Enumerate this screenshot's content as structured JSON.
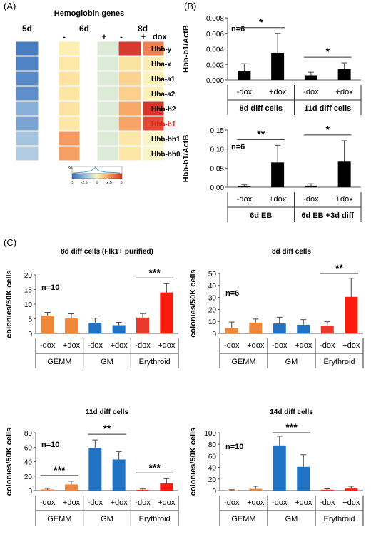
{
  "panel_labels": [
    "(A)",
    "(B)",
    "(C)"
  ],
  "heatmap": {
    "title": "Hemoglobin genes",
    "day_labels": [
      "5d",
      "6d",
      "8d"
    ],
    "dox_labels": [
      "-",
      "+",
      "-",
      "+"
    ],
    "dox_label": "dox",
    "genes": [
      "Hbb-y",
      "Hba-x",
      "Hba-a1",
      "Hba-a2",
      "Hbb-b2",
      "Hbb-b1",
      "Hbb-bh1",
      "Hbb-bh0"
    ],
    "highlight_color": "#d9251c",
    "colorbar": {
      "ticks": [
        "-5",
        "-2.5",
        "0",
        "2.5",
        "5"
      ],
      "count_label": "95"
    }
  },
  "chart_data": [
    {
      "id": "B-top",
      "type": "bar",
      "ylabel": "Hbb-b1/ActB",
      "ylim": [
        0,
        0.008
      ],
      "yticks": [
        "0.000",
        "0.002",
        "0.004",
        "0.006",
        "0.008"
      ],
      "n_label": "n=6",
      "categories": [
        "-dox",
        "+dox",
        "-dox",
        "+dox"
      ],
      "groups": [
        "8d diff cells",
        "11d diff cells"
      ],
      "values": [
        0.0011,
        0.0035,
        0.0006,
        0.0014
      ],
      "errors": [
        0.001,
        0.0025,
        0.0004,
        0.0008
      ],
      "sig": [
        "*",
        "*"
      ]
    },
    {
      "id": "B-bottom",
      "type": "bar",
      "ylabel": "Hbb-b1/ActB",
      "ylim": [
        0,
        0.15
      ],
      "yticks": [
        "0.00",
        "0.05",
        "0.10",
        "0.15"
      ],
      "n_label": "n=6",
      "categories": [
        "-dox",
        "+dox",
        "-dox",
        "+dox"
      ],
      "groups": [
        "6d EB",
        "6d EB +3d diff"
      ],
      "values": [
        0.003,
        0.065,
        0.004,
        0.067
      ],
      "errors": [
        0.003,
        0.045,
        0.005,
        0.055
      ],
      "sig": [
        "**",
        "*"
      ]
    },
    {
      "id": "C1",
      "type": "bar",
      "title": "8d diff cells (Flk1+ purified)",
      "ylabel": "colonies/50K cells",
      "ylim": [
        0,
        20
      ],
      "yticks": [
        "0",
        "5",
        "10",
        "15",
        "20"
      ],
      "n_label": "n=10",
      "categories": [
        "-dox",
        "+dox",
        "-dox",
        "+dox",
        "-dox",
        "+dox"
      ],
      "groups": [
        "GEMM",
        "GM",
        "Erythroid"
      ],
      "values": [
        6.1,
        5.1,
        3.6,
        2.8,
        5.4,
        14
      ],
      "errors": [
        1.1,
        1.6,
        1.6,
        1.0,
        1.4,
        3.0
      ],
      "sig": [
        "",
        "",
        "***"
      ]
    },
    {
      "id": "C2",
      "type": "bar",
      "title": "8d diff cells",
      "ylabel": "colonies/50K cells",
      "ylim": [
        0,
        50
      ],
      "yticks": [
        "0",
        "10",
        "20",
        "30",
        "40",
        "50"
      ],
      "n_label": "n=6",
      "categories": [
        "-dox",
        "+dox",
        "-dox",
        "+dox",
        "-dox",
        "+dox"
      ],
      "groups": [
        "GEMM",
        "GM",
        "Erythroid"
      ],
      "values": [
        4.5,
        9,
        8.3,
        7.2,
        6.5,
        30.5
      ],
      "errors": [
        5,
        3,
        5.2,
        4.3,
        3.2,
        15.5
      ],
      "sig": [
        "",
        "",
        "**"
      ]
    },
    {
      "id": "C3",
      "type": "bar",
      "title": "11d diff cells",
      "ylabel": "colonies/50K cells",
      "ylim": [
        0,
        80
      ],
      "yticks": [
        "0",
        "20",
        "40",
        "60",
        "80"
      ],
      "n_label": "n=10",
      "categories": [
        "-dox",
        "+dox",
        "-dox",
        "+dox",
        "-dox",
        "+dox"
      ],
      "groups": [
        "GEMM",
        "GM",
        "Erythroid"
      ],
      "values": [
        1.5,
        8.5,
        59,
        43,
        1,
        10
      ],
      "errors": [
        1.5,
        4.5,
        11,
        11,
        1.2,
        6.5
      ],
      "sig": [
        "***",
        "**",
        "***"
      ]
    },
    {
      "id": "C4",
      "type": "bar",
      "title": "14d diff cells",
      "ylabel": "colonies/50K cells",
      "ylim": [
        0,
        100
      ],
      "yticks": [
        "0",
        "20",
        "40",
        "60",
        "80",
        "100"
      ],
      "n_label": "n=10",
      "categories": [
        "-dox",
        "+dox",
        "-dox",
        "+dox",
        "-dox",
        "+dox"
      ],
      "groups": [
        "GEMM",
        "GM",
        "Erythroid"
      ],
      "values": [
        0.5,
        3,
        78,
        41,
        1.5,
        3.5
      ],
      "errors": [
        1,
        4.5,
        16,
        21,
        1.5,
        4
      ],
      "sig": [
        "",
        "***",
        ""
      ]
    }
  ],
  "colors": {
    "B_bar": "#000000",
    "GEMM": "#f0883a",
    "GM": "#1f72c4",
    "Erythroid_minus": "#e8392c",
    "Erythroid_plus": "#ff1a0e"
  }
}
